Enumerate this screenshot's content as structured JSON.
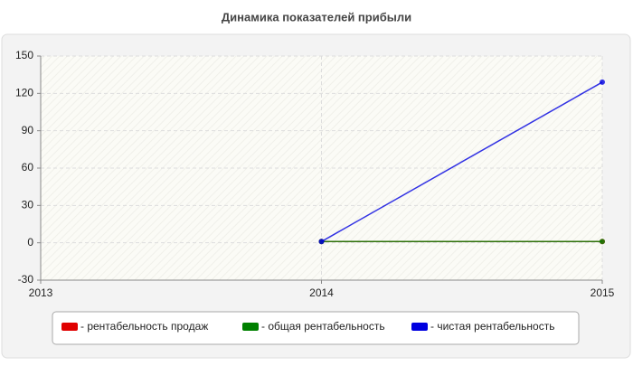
{
  "chart_data": {
    "type": "line",
    "title": "Динамика показателей прибыли",
    "x": [
      2014,
      2015
    ],
    "series": [
      {
        "name": "- рентабельность продаж",
        "color": "#e00000",
        "values": [
          1,
          1
        ]
      },
      {
        "name": "- общая рентабельность",
        "color": "#008000",
        "values": [
          1,
          1
        ]
      },
      {
        "name": "- чистая рентабельность",
        "color": "#0000e0",
        "values": [
          1,
          129
        ]
      }
    ],
    "xlim": [
      2013,
      2015
    ],
    "xticks": [
      2013,
      2014,
      2015
    ],
    "ylim": [
      -30,
      150
    ],
    "yticks": [
      -30,
      0,
      30,
      60,
      90,
      120,
      150
    ],
    "grid": true,
    "legend": "bottom"
  }
}
